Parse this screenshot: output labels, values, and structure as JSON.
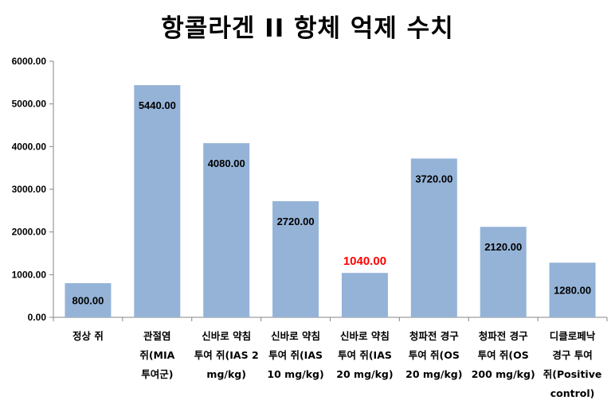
{
  "chart_data": {
    "type": "bar",
    "title": "항콜라겐 II 항체 억제 수치",
    "xlabel": "",
    "ylabel": "",
    "ylim": [
      0,
      6000
    ],
    "yticks": [
      "0.00",
      "1000.00",
      "2000.00",
      "3000.00",
      "4000.00",
      "5000.00",
      "6000.00"
    ],
    "grid": false,
    "bar_color": "#95B3D7",
    "highlight_color": "#FF0000",
    "categories": [
      [
        "정상 쥐"
      ],
      [
        "관절염",
        "쥐(MIA",
        "투여군)"
      ],
      [
        "신바로 약침",
        "투여 쥐(IAS 2",
        "mg/kg)"
      ],
      [
        "신바로 약침",
        "투여 쥐(IAS",
        "10 mg/kg)"
      ],
      [
        "신바로 약침",
        "투여 쥐(IAS",
        "20 mg/kg)"
      ],
      [
        "청파전 경구",
        "투여 쥐(OS",
        "20 mg/kg)"
      ],
      [
        "청파전 경구",
        "투여 쥐(OS",
        "200 mg/kg)"
      ],
      [
        "디클로페낙",
        "경구 투여",
        "쥐(Positive",
        "control)"
      ]
    ],
    "values": [
      800,
      5440,
      4080,
      2720,
      1040,
      3720,
      2120,
      1280
    ],
    "value_labels": [
      "800.00",
      "5440.00",
      "4080.00",
      "2720.00",
      "1040.00",
      "3720.00",
      "2120.00",
      "1280.00"
    ],
    "highlight_index": 4
  }
}
